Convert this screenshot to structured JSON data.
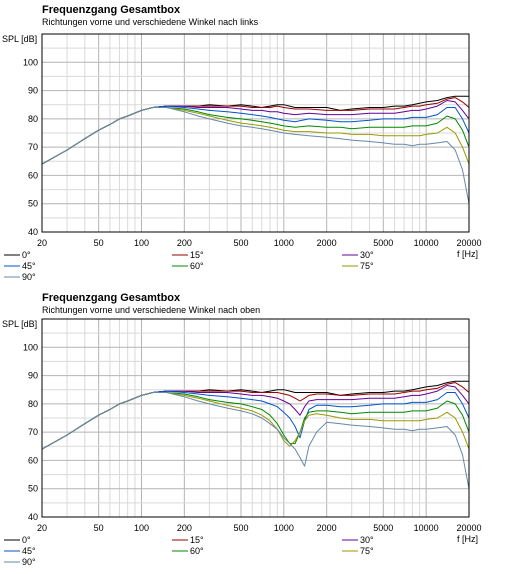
{
  "chart_data": [
    {
      "type": "line",
      "title": "Frequenzgang Gesamtbox",
      "subtitle": "Richtungen vorne und verschiedene Winkel nach links",
      "ylabel": "SPL [dB]",
      "xlabel": "f [Hz]",
      "x_scale": "log",
      "xlim": [
        20,
        20000
      ],
      "ylim": [
        40,
        110
      ],
      "x_ticks": [
        "20",
        "50",
        "100",
        "200",
        "500",
        "1000",
        "2000",
        "5000",
        "10000",
        "20000"
      ],
      "y_ticks": [
        "40",
        "50",
        "60",
        "70",
        "80",
        "90",
        "100"
      ],
      "grid": true,
      "legend_position": "bottom",
      "x": [
        20,
        30,
        40,
        50,
        60,
        70,
        80,
        100,
        120,
        150,
        200,
        250,
        300,
        400,
        500,
        600,
        700,
        800,
        900,
        1000,
        1200,
        1500,
        2000,
        2500,
        3000,
        4000,
        5000,
        6000,
        7000,
        8000,
        9000,
        10000,
        12000,
        14000,
        16000,
        18000,
        20000
      ],
      "series": [
        {
          "name": "0°",
          "color": "#000000",
          "values": [
            64,
            69,
            73,
            76,
            78,
            80,
            81,
            83,
            84,
            84.5,
            84.5,
            84.5,
            85,
            84.5,
            85,
            84.5,
            84,
            84.5,
            85,
            85,
            84,
            84,
            84,
            83,
            83.5,
            84,
            84,
            84.5,
            84.5,
            85,
            85.5,
            86,
            86.5,
            87.5,
            88,
            88,
            88
          ]
        },
        {
          "name": "15°",
          "color": "#990000",
          "values": [
            64,
            69,
            73,
            76,
            78,
            80,
            81,
            83,
            84,
            84.5,
            84.5,
            84.5,
            84.5,
            84.5,
            84.5,
            84,
            84,
            84,
            84.5,
            84,
            83.5,
            83.5,
            83,
            83,
            83,
            83.5,
            83.5,
            83.5,
            84,
            84.5,
            84.5,
            85,
            85.5,
            87,
            87.5,
            86,
            84
          ]
        },
        {
          "name": "30°",
          "color": "#660099",
          "values": [
            64,
            69,
            73,
            76,
            78,
            80,
            81,
            83,
            84,
            84.5,
            84.5,
            84,
            84,
            84,
            83.5,
            83,
            83,
            82.5,
            82.5,
            82,
            81.5,
            82,
            81.5,
            81.5,
            81.5,
            82,
            82,
            82,
            82.5,
            83,
            83,
            83.5,
            84.5,
            86.5,
            86,
            83,
            80
          ]
        },
        {
          "name": "45°",
          "color": "#0055cc",
          "values": [
            64,
            69,
            73,
            76,
            78,
            80,
            81,
            83,
            84,
            84.5,
            84,
            83.5,
            83,
            82.5,
            82,
            81.5,
            81,
            80.5,
            80,
            79.5,
            79,
            80,
            79.5,
            79,
            79,
            79.5,
            80,
            80,
            80,
            80.5,
            80.5,
            80.5,
            81.5,
            84,
            84,
            80,
            75
          ]
        },
        {
          "name": "60°",
          "color": "#008800",
          "values": [
            64,
            69,
            73,
            76,
            78,
            80,
            81,
            83,
            84,
            84,
            83.5,
            82.5,
            81.5,
            80.5,
            80,
            79.5,
            79,
            78.5,
            78,
            77.5,
            77,
            77.5,
            77,
            77,
            76.5,
            77,
            77,
            77,
            77,
            77.5,
            77.5,
            77.5,
            78.5,
            81,
            80,
            76,
            70
          ]
        },
        {
          "name": "75°",
          "color": "#999900",
          "values": [
            64,
            69,
            73,
            76,
            78,
            80,
            81,
            83,
            84,
            84,
            83,
            82,
            81,
            79.5,
            78.5,
            78,
            77.5,
            77,
            76.5,
            76,
            75.5,
            75.5,
            75,
            75,
            74.5,
            74.5,
            74,
            74,
            74,
            74,
            74,
            74.5,
            75,
            77,
            75,
            70,
            64
          ]
        },
        {
          "name": "90°",
          "color": "#6688aa",
          "values": [
            64,
            69,
            73,
            76,
            78,
            80,
            81,
            83,
            84,
            84,
            82.5,
            81,
            80,
            78.5,
            77.5,
            77,
            76.5,
            76,
            75.5,
            75,
            74.5,
            74,
            73.5,
            73,
            72.5,
            72,
            71.5,
            71,
            71,
            70.5,
            71,
            71,
            71.5,
            72,
            69,
            62,
            50
          ]
        }
      ]
    },
    {
      "type": "line",
      "title": "Frequenzgang Gesamtbox",
      "subtitle": "Richtungen vorne und verschiedene Winkel nach oben",
      "ylabel": "SPL [dB]",
      "xlabel": "f [Hz]",
      "x_scale": "log",
      "xlim": [
        20,
        20000
      ],
      "ylim": [
        40,
        110
      ],
      "x_ticks": [
        "20",
        "50",
        "100",
        "200",
        "500",
        "1000",
        "2000",
        "5000",
        "10000",
        "20000"
      ],
      "y_ticks": [
        "40",
        "50",
        "60",
        "70",
        "80",
        "90",
        "100"
      ],
      "grid": true,
      "legend_position": "bottom",
      "x": [
        20,
        30,
        40,
        50,
        60,
        70,
        80,
        100,
        120,
        150,
        200,
        250,
        300,
        400,
        500,
        600,
        700,
        800,
        900,
        1000,
        1100,
        1200,
        1300,
        1400,
        1500,
        1700,
        2000,
        2500,
        3000,
        4000,
        5000,
        6000,
        7000,
        8000,
        9000,
        10000,
        12000,
        14000,
        16000,
        18000,
        20000
      ],
      "series": [
        {
          "name": "0°",
          "color": "#000000",
          "values": [
            64,
            69,
            73,
            76,
            78,
            80,
            81,
            83,
            84,
            84.5,
            84.5,
            84.5,
            85,
            84.5,
            85,
            84.5,
            84,
            84.5,
            85,
            85,
            84.5,
            84,
            84,
            84,
            84,
            84,
            84,
            83,
            83.5,
            84,
            84,
            84.5,
            84.5,
            85,
            85.5,
            86,
            86.5,
            87.5,
            88,
            88,
            88
          ]
        },
        {
          "name": "15°",
          "color": "#990000",
          "values": [
            64,
            69,
            73,
            76,
            78,
            80,
            81,
            83,
            84,
            84.5,
            84.5,
            84.5,
            84.5,
            84.5,
            84.5,
            84,
            84,
            84,
            84,
            83.5,
            83,
            82,
            81,
            82,
            83,
            83.5,
            83.5,
            83,
            83,
            83.5,
            83.5,
            83.5,
            84,
            84.5,
            84.5,
            85,
            85.5,
            87,
            87.5,
            86,
            84
          ]
        },
        {
          "name": "30°",
          "color": "#660099",
          "values": [
            64,
            69,
            73,
            76,
            78,
            80,
            81,
            83,
            84,
            84.5,
            84.5,
            84,
            84,
            84,
            83.5,
            83,
            83,
            82.5,
            82,
            81,
            80,
            78,
            76,
            79,
            81,
            81.5,
            81.5,
            81.5,
            81.5,
            82,
            82,
            82,
            82.5,
            83,
            83,
            83.5,
            84.5,
            86.5,
            86,
            83,
            80
          ]
        },
        {
          "name": "45°",
          "color": "#0055cc",
          "values": [
            64,
            69,
            73,
            76,
            78,
            80,
            81,
            83,
            84,
            84.5,
            84,
            83.5,
            83,
            82.5,
            82,
            81.5,
            81,
            80,
            79,
            77,
            75,
            72,
            68,
            74,
            78,
            79.5,
            79.5,
            79,
            79,
            79.5,
            80,
            80,
            80,
            80.5,
            80.5,
            80.5,
            81.5,
            84,
            84,
            80,
            75
          ]
        },
        {
          "name": "60°",
          "color": "#008800",
          "values": [
            64,
            69,
            73,
            76,
            78,
            80,
            81,
            83,
            84,
            84,
            83.5,
            82.5,
            81.5,
            80.5,
            80,
            79,
            78,
            76,
            73,
            69,
            66,
            66,
            70,
            75,
            77,
            77.5,
            77.5,
            77,
            76.5,
            77,
            77,
            77,
            77,
            77.5,
            77.5,
            77.5,
            78.5,
            81,
            80,
            76,
            70
          ]
        },
        {
          "name": "75°",
          "color": "#999900",
          "values": [
            64,
            69,
            73,
            76,
            78,
            80,
            81,
            83,
            84,
            84,
            83,
            82,
            81,
            79.5,
            78.5,
            77.5,
            76,
            74,
            71,
            67,
            65,
            67,
            70,
            74,
            76,
            76.5,
            76,
            75,
            74.5,
            74.5,
            74,
            74,
            74,
            74,
            74,
            74.5,
            75,
            77,
            75,
            70,
            64
          ]
        },
        {
          "name": "90°",
          "color": "#6688aa",
          "values": [
            64,
            69,
            73,
            76,
            78,
            80,
            81,
            83,
            84,
            84,
            82.5,
            81,
            80,
            78.5,
            77.5,
            76.5,
            75,
            73,
            71,
            68,
            66,
            64,
            61,
            58,
            65,
            70,
            73.5,
            73,
            72.5,
            72,
            71.5,
            71,
            71,
            70.5,
            71,
            71,
            71.5,
            72,
            69,
            62,
            50
          ]
        }
      ]
    }
  ]
}
